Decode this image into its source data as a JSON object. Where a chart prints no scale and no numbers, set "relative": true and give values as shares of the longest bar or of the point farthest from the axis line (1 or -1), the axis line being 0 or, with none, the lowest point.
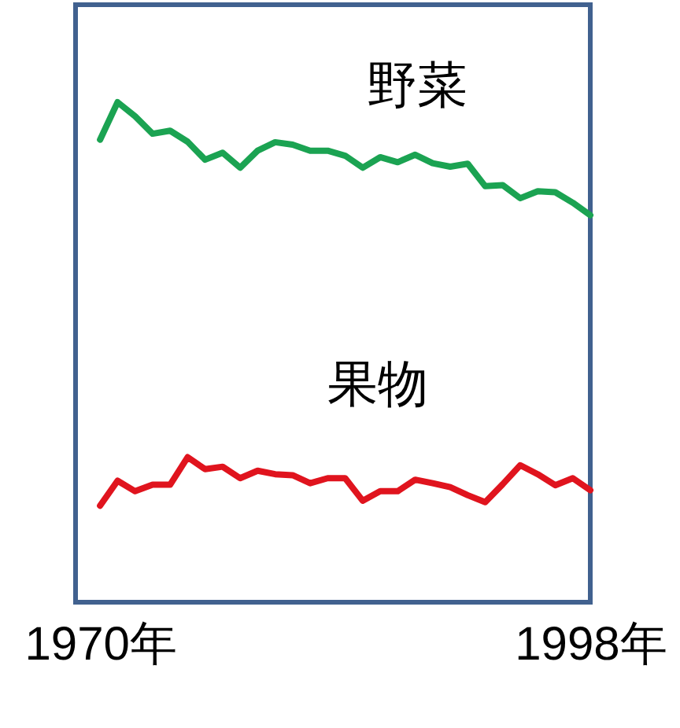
{
  "chart_data": {
    "type": "line",
    "relative": true,
    "tick_labels": "x",
    "line_style": "solid",
    "x": [
      1970,
      1971,
      1972,
      1973,
      1974,
      1975,
      1976,
      1977,
      1978,
      1979,
      1980,
      1981,
      1982,
      1983,
      1984,
      1985,
      1986,
      1987,
      1988,
      1989,
      1990,
      1991,
      1992,
      1993,
      1994,
      1995,
      1996,
      1997,
      1998
    ],
    "xlim": [
      1968.6,
      1998
    ],
    "xticks": [
      {
        "value": 1970,
        "label": "1970年"
      },
      {
        "value": 1998,
        "label": "1998年"
      }
    ],
    "series": [
      {
        "name": "野菜",
        "color": "#1ba352",
        "values": [
          0.925,
          1.0,
          0.972,
          0.937,
          0.943,
          0.921,
          0.885,
          0.899,
          0.869,
          0.903,
          0.92,
          0.915,
          0.903,
          0.903,
          0.893,
          0.869,
          0.89,
          0.88,
          0.895,
          0.878,
          0.871,
          0.877,
          0.832,
          0.834,
          0.808,
          0.822,
          0.82,
          0.799,
          0.774
        ]
      },
      {
        "name": "果物",
        "color": "#e0141e",
        "values": [
          0.193,
          0.243,
          0.222,
          0.235,
          0.235,
          0.29,
          0.266,
          0.271,
          0.248,
          0.263,
          0.256,
          0.254,
          0.238,
          0.248,
          0.248,
          0.203,
          0.222,
          0.222,
          0.245,
          0.238,
          0.23,
          0.214,
          0.2,
          0.236,
          0.274,
          0.256,
          0.234,
          0.248,
          0.224
        ]
      }
    ]
  }
}
